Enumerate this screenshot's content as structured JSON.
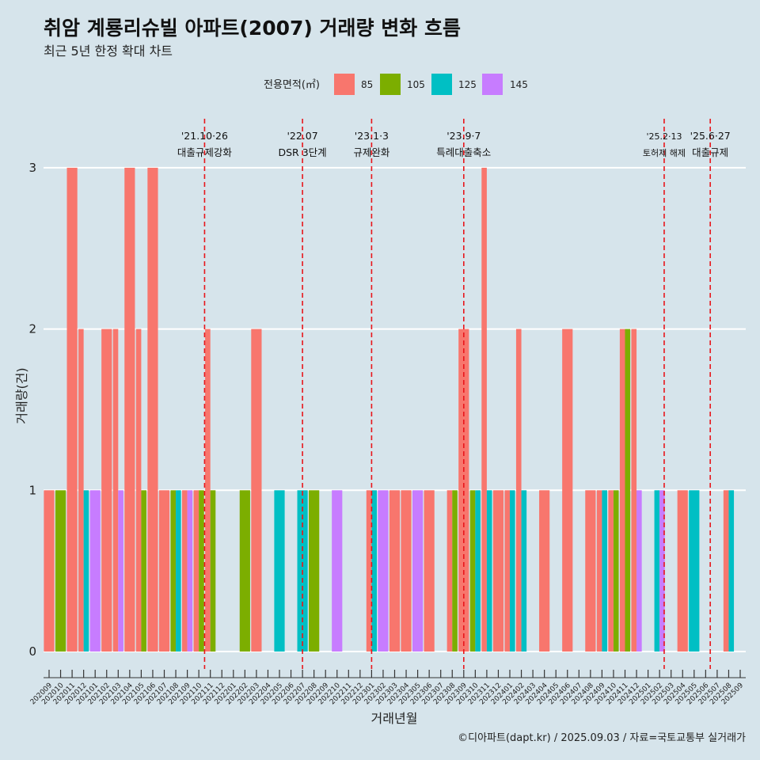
{
  "chart_data": {
    "type": "bar",
    "title": "취암 계룡리슈빌 아파트(2007) 거래량 변화 흐름",
    "subtitle": "최근 5년 한정 확대 차트",
    "xlabel": "거래년월",
    "ylabel": "거래량(건)",
    "ylim": [
      -0.15,
      3.3
    ],
    "yticks": [
      0,
      1,
      2,
      3
    ],
    "legend": {
      "title": "전용면적(㎡)",
      "position": "top",
      "entries": [
        {
          "label": "85",
          "color": "#f8766d"
        },
        {
          "label": "105",
          "color": "#7cae00"
        },
        {
          "label": "125",
          "color": "#00bfc4"
        },
        {
          "label": "145",
          "color": "#c77cff"
        }
      ]
    },
    "x_tick_labels": [
      "202009",
      "202010",
      "202011",
      "202012",
      "202101",
      "202102",
      "202103",
      "202104",
      "202105",
      "202106",
      "202107",
      "202108",
      "202109",
      "202110",
      "202111",
      "202112",
      "202201",
      "202202",
      "202203",
      "202204",
      "202205",
      "202206",
      "202207",
      "202208",
      "202209",
      "202210",
      "202211",
      "202212",
      "202301",
      "202302",
      "202303",
      "202304",
      "202305",
      "202306",
      "202307",
      "202308",
      "202309",
      "202310",
      "202311",
      "202312",
      "202401",
      "202402",
      "202403",
      "202404",
      "202405",
      "202406",
      "202407",
      "202408",
      "202409",
      "202410",
      "202411",
      "202412",
      "202501",
      "202502",
      "202503",
      "202504",
      "202505",
      "202506",
      "202507",
      "202508",
      "202509"
    ],
    "series": [
      {
        "name": "85",
        "color": "#f8766d",
        "points": [
          {
            "month": "202009",
            "value": 1
          },
          {
            "month": "202011",
            "value": 3
          },
          {
            "month": "202012",
            "value": 2
          },
          {
            "month": "202102",
            "value": 2
          },
          {
            "month": "202103",
            "value": 2
          },
          {
            "month": "202104",
            "value": 3
          },
          {
            "month": "202105",
            "value": 2
          },
          {
            "month": "202106",
            "value": 3
          },
          {
            "month": "202107",
            "value": 1
          },
          {
            "month": "202109",
            "value": 1
          },
          {
            "month": "202110",
            "value": 1
          },
          {
            "month": "202111",
            "value": 2
          },
          {
            "month": "202203",
            "value": 2
          },
          {
            "month": "202301",
            "value": 1
          },
          {
            "month": "202303",
            "value": 1
          },
          {
            "month": "202304",
            "value": 1
          },
          {
            "month": "202306",
            "value": 1
          },
          {
            "month": "202308",
            "value": 1
          },
          {
            "month": "202309",
            "value": 2
          },
          {
            "month": "202311",
            "value": 3
          },
          {
            "month": "202312",
            "value": 1
          },
          {
            "month": "202401",
            "value": 1
          },
          {
            "month": "202402",
            "value": 2
          },
          {
            "month": "202404",
            "value": 1
          },
          {
            "month": "202406",
            "value": 2
          },
          {
            "month": "202408",
            "value": 1
          },
          {
            "month": "202409",
            "value": 1
          },
          {
            "month": "202410",
            "value": 1
          },
          {
            "month": "202411",
            "value": 2
          },
          {
            "month": "202412",
            "value": 2
          },
          {
            "month": "202504",
            "value": 1
          },
          {
            "month": "202508",
            "value": 1
          }
        ]
      },
      {
        "name": "105",
        "color": "#7cae00",
        "points": [
          {
            "month": "202010",
            "value": 1
          },
          {
            "month": "202105",
            "value": 1
          },
          {
            "month": "202108",
            "value": 1
          },
          {
            "month": "202110",
            "value": 1
          },
          {
            "month": "202111",
            "value": 1
          },
          {
            "month": "202202",
            "value": 1
          },
          {
            "month": "202208",
            "value": 1
          },
          {
            "month": "202308",
            "value": 1
          },
          {
            "month": "202310",
            "value": 1
          },
          {
            "month": "202410",
            "value": 1
          },
          {
            "month": "202411",
            "value": 2
          }
        ]
      },
      {
        "name": "125",
        "color": "#00bfc4",
        "points": [
          {
            "month": "202012",
            "value": 1
          },
          {
            "month": "202108",
            "value": 1
          },
          {
            "month": "202205",
            "value": 1
          },
          {
            "month": "202207",
            "value": 1
          },
          {
            "month": "202301",
            "value": 1
          },
          {
            "month": "202310",
            "value": 1
          },
          {
            "month": "202311",
            "value": 1
          },
          {
            "month": "202401",
            "value": 1
          },
          {
            "month": "202402",
            "value": 1
          },
          {
            "month": "202409",
            "value": 1
          },
          {
            "month": "202502",
            "value": 1
          },
          {
            "month": "202505",
            "value": 1
          },
          {
            "month": "202508",
            "value": 1
          }
        ]
      },
      {
        "name": "145",
        "color": "#c77cff",
        "points": [
          {
            "month": "202101",
            "value": 1
          },
          {
            "month": "202103",
            "value": 1
          },
          {
            "month": "202109",
            "value": 1
          },
          {
            "month": "202210",
            "value": 1
          },
          {
            "month": "202302",
            "value": 1
          },
          {
            "month": "202305",
            "value": 1
          },
          {
            "month": "202412",
            "value": 1
          },
          {
            "month": "202502",
            "value": 1
          }
        ]
      }
    ],
    "events": [
      {
        "date_label": "'21.10·26",
        "name": "대출규제강화",
        "x_month": "202110.5",
        "small": false
      },
      {
        "date_label": "'22.07",
        "name": "DSR 3단계",
        "x_month": "202207",
        "small": false
      },
      {
        "date_label": "'23.1·3",
        "name": "규제완화",
        "x_month": "202301",
        "small": false
      },
      {
        "date_label": "'23.9·7",
        "name": "특례대출축소",
        "x_month": "202309",
        "small": false
      },
      {
        "date_label": "'25.2·13",
        "name": "토허제 해제",
        "x_month": "202502.4",
        "small": true
      },
      {
        "date_label": "'25.6·27",
        "name": "대출규제",
        "x_month": "202506.4",
        "small": false
      }
    ],
    "caption": "©디아파트(dapt.kr) / 2025.09.03 / 자료=국토교통부 실거래가"
  }
}
